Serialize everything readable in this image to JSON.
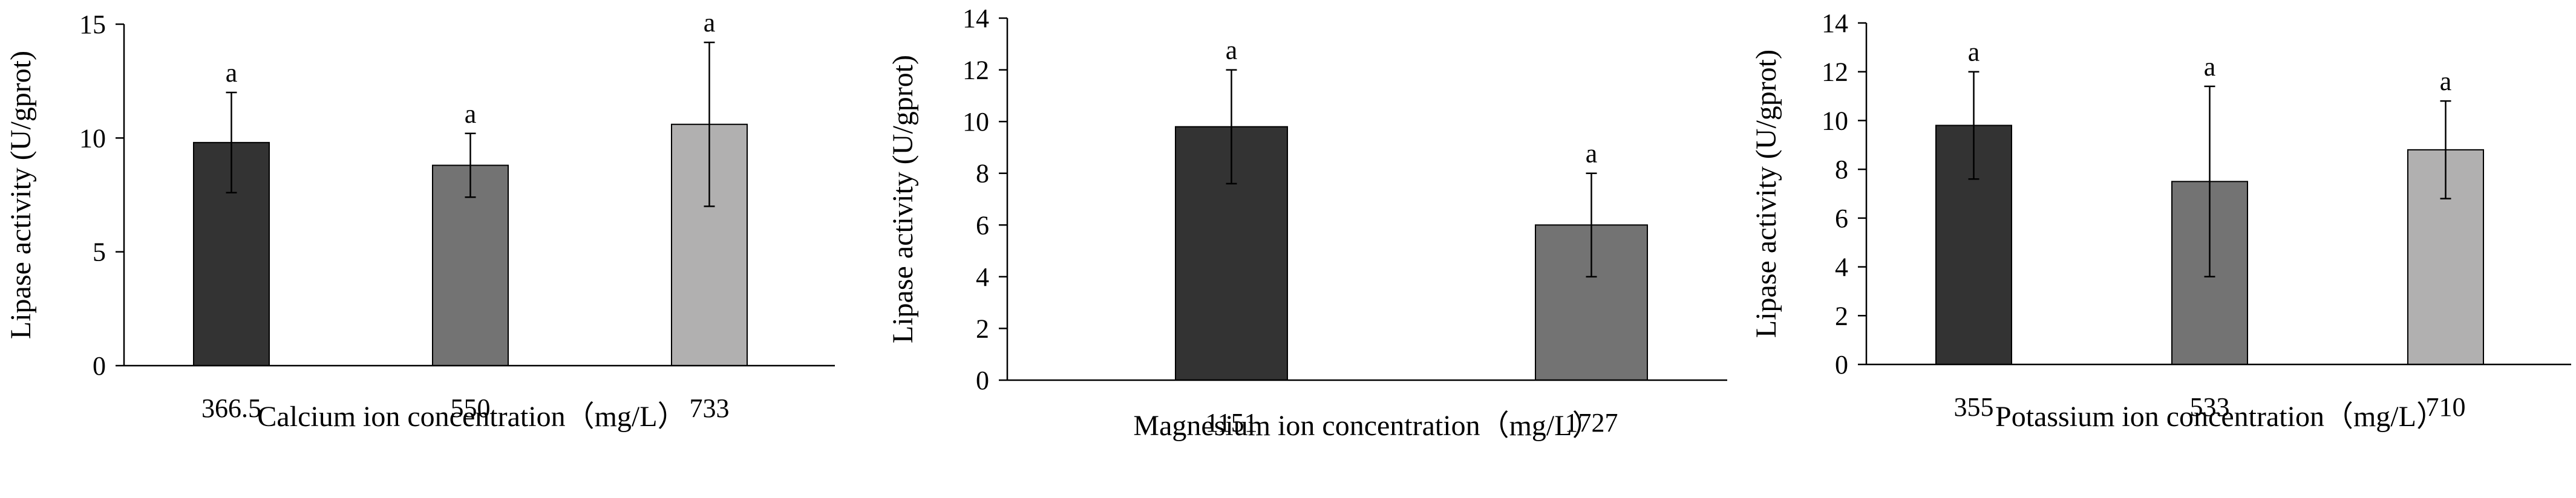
{
  "colors": {
    "bar1": "#333333",
    "bar2": "#737373",
    "bar3": "#b1b0b0",
    "axis": "#000000",
    "background": "#ffffff"
  },
  "chart_data": [
    {
      "type": "bar",
      "categories": [
        "366.5",
        "550",
        "733"
      ],
      "values": [
        9.8,
        8.8,
        10.6
      ],
      "errors": [
        2.2,
        1.4,
        3.6
      ],
      "sig_labels": [
        "a",
        "a",
        "a"
      ],
      "xlabel": "Calcium ion concentration（mg/L）",
      "ylabel": "Lipase activity (U/gprot)",
      "ylim": [
        0,
        15
      ],
      "yticks": [
        "0",
        "5",
        "10",
        "15"
      ],
      "grid": false
    },
    {
      "type": "bar",
      "categories": [
        "1151",
        "1727"
      ],
      "values": [
        9.8,
        6.0
      ],
      "errors": [
        2.2,
        2.0
      ],
      "sig_labels": [
        "a",
        "a"
      ],
      "xlabel": "Magnesium ion concentration（mg/L）",
      "ylabel": "Lipase activity (U/gprot)",
      "ylim": [
        0,
        14
      ],
      "yticks": [
        "0",
        "2",
        "4",
        "6",
        "8",
        "10",
        "12",
        "14"
      ],
      "grid": false
    },
    {
      "type": "bar",
      "categories": [
        "355",
        "533",
        "710"
      ],
      "values": [
        9.8,
        7.5,
        8.8
      ],
      "errors": [
        2.2,
        3.9,
        2.0
      ],
      "sig_labels": [
        "a",
        "a",
        "a"
      ],
      "xlabel": "Potassium ion concentration（mg/L）",
      "ylabel": "Lipase activity (U/gprot)",
      "ylim": [
        0,
        14
      ],
      "yticks": [
        "0",
        "2",
        "4",
        "6",
        "8",
        "10",
        "12",
        "14"
      ],
      "grid": false
    }
  ]
}
